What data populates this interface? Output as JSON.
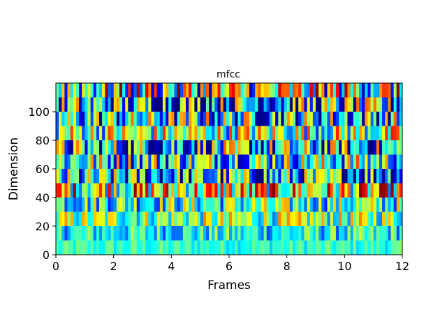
{
  "chart_data": {
    "type": "heatmap",
    "title": "mfcc",
    "xlabel": "Frames",
    "ylabel": "Dimension",
    "xlim": [
      0,
      12
    ],
    "ylim": [
      0,
      120
    ],
    "xticks": [
      "0",
      "2",
      "4",
      "6",
      "8",
      "10",
      "12"
    ],
    "yticks": [
      "0",
      "20",
      "40",
      "60",
      "80",
      "100"
    ],
    "colormap": "jet",
    "grid": false,
    "rows": 12,
    "cols": 120,
    "band_profiles": [
      {
        "dimension_range": [
          0,
          10
        ],
        "level": 0.42,
        "variation": 0.06
      },
      {
        "dimension_range": [
          10,
          20
        ],
        "level": 0.38,
        "variation": 0.12
      },
      {
        "dimension_range": [
          20,
          30
        ],
        "level": 0.5,
        "variation": 0.16
      },
      {
        "dimension_range": [
          30,
          40
        ],
        "level": 0.44,
        "variation": 0.18
      },
      {
        "dimension_range": [
          40,
          50
        ],
        "level": 0.62,
        "variation": 0.24
      },
      {
        "dimension_range": [
          50,
          60
        ],
        "level": 0.32,
        "variation": 0.26
      },
      {
        "dimension_range": [
          60,
          70
        ],
        "level": 0.44,
        "variation": 0.24
      },
      {
        "dimension_range": [
          70,
          80
        ],
        "level": 0.34,
        "variation": 0.28
      },
      {
        "dimension_range": [
          80,
          90
        ],
        "level": 0.52,
        "variation": 0.22
      },
      {
        "dimension_range": [
          90,
          100
        ],
        "level": 0.38,
        "variation": 0.26
      },
      {
        "dimension_range": [
          100,
          110
        ],
        "level": 0.34,
        "variation": 0.28
      },
      {
        "dimension_range": [
          110,
          120
        ],
        "level": 0.52,
        "variation": 0.3
      }
    ]
  }
}
